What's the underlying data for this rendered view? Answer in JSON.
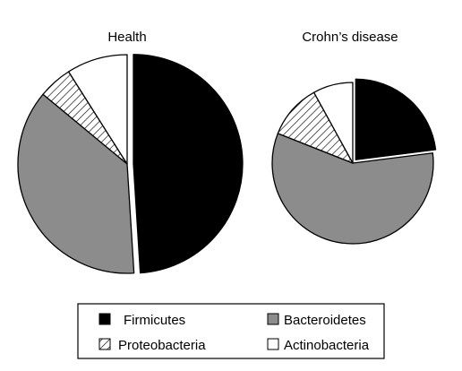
{
  "chart_data": [
    {
      "type": "pie",
      "title": "Health",
      "categories": [
        "Firmicutes",
        "Bacteroidetes",
        "Proteobacteria",
        "Actinobacteria"
      ],
      "values": [
        49,
        37,
        5,
        9
      ],
      "exploded": "Firmicutes"
    },
    {
      "type": "pie",
      "title": "Crohn’s disease",
      "categories": [
        "Firmicutes",
        "Bacteroidetes",
        "Proteobacteria",
        "Actinobacteria"
      ],
      "values": [
        23,
        58,
        11,
        8
      ],
      "exploded": "Firmicutes"
    }
  ],
  "legend": {
    "placement": "bottom",
    "items": [
      {
        "label": "Firmicutes",
        "color": "#000000",
        "pattern": "solid"
      },
      {
        "label": "Bacteroidetes",
        "color": "#8c8c8c",
        "pattern": "solid"
      },
      {
        "label": "Proteobacteria",
        "color": "#ffffff",
        "pattern": "diagonal-hatch"
      },
      {
        "label": "Actinobacteria",
        "color": "#ffffff",
        "pattern": "solid"
      }
    ]
  }
}
